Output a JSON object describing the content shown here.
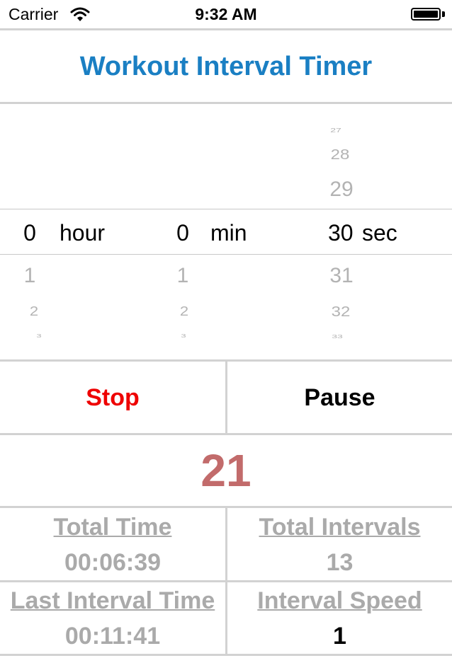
{
  "status_bar": {
    "carrier": "Carrier",
    "time": "9:32 AM"
  },
  "title": "Workout Interval Timer",
  "picker": {
    "hours": {
      "above": [],
      "selected": "0",
      "unit": "hour",
      "below": [
        "1",
        "2",
        "3"
      ]
    },
    "minutes": {
      "above": [],
      "selected": "0",
      "unit": "min",
      "below": [
        "1",
        "2",
        "3"
      ]
    },
    "seconds": {
      "above": [
        "27",
        "28",
        "29"
      ],
      "selected": "30",
      "unit": "sec",
      "below": [
        "31",
        "32",
        "33"
      ]
    }
  },
  "buttons": {
    "stop": "Stop",
    "pause": "Pause"
  },
  "counter": "21",
  "stats": {
    "total_time_label": "Total Time",
    "total_time_value": "00:06:39",
    "total_intervals_label": "Total Intervals",
    "total_intervals_value": "13",
    "last_interval_label": "Last Interval Time",
    "last_interval_value": "00:11:41",
    "interval_speed_label": "Interval Speed",
    "interval_speed_value": "1"
  },
  "colors": {
    "title": "#1a7fc3",
    "stop": "#ee0000",
    "counter": "#c26b6b",
    "stat_text": "#aaaaaa",
    "separator": "#d2d2d2"
  }
}
